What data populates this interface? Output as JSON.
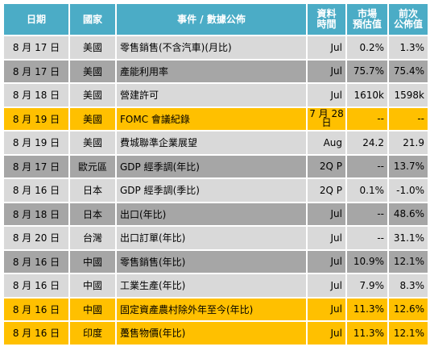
{
  "headers": {
    "date": "日期",
    "country": "國家",
    "event": "事件 / 數據公佈",
    "period_line1": "資料",
    "period_line2": "時間",
    "forecast_line1": "市場",
    "forecast_line2": "預估值",
    "previous_line1": "前次",
    "previous_line2": "公佈值"
  },
  "rows": [
    {
      "date": "8 月 17 日",
      "country": "美國",
      "event": "零售銷售(不含汽車)(月比)",
      "period": "Jul",
      "forecast": "0.2%",
      "previous": "1.3%",
      "style": "light"
    },
    {
      "date": "8 月 17 日",
      "country": "美國",
      "event": "產能利用率",
      "period": "Jul",
      "forecast": "75.7%",
      "previous": "75.4%",
      "style": "dark"
    },
    {
      "date": "8 月 18 日",
      "country": "美國",
      "event": "營建許可",
      "period": "Jul",
      "forecast": "1610k",
      "previous": "1598k",
      "style": "light"
    },
    {
      "date": "8 月 19 日",
      "country": "美國",
      "event": "FOMC 會議紀錄",
      "period": "7 月 28 日",
      "forecast": "--",
      "previous": "--",
      "style": "gold"
    },
    {
      "date": "8 月 19 日",
      "country": "美國",
      "event": "費城聯準企業展望",
      "period": "Aug",
      "forecast": "24.2",
      "previous": "21.9",
      "style": "light"
    },
    {
      "date": "8 月 17 日",
      "country": "歐元區",
      "event": "GDP 經季調(年比)",
      "period": "2Q P",
      "forecast": "--",
      "previous": "13.7%",
      "style": "dark"
    },
    {
      "date": "8 月 16 日",
      "country": "日本",
      "event": "GDP 經季調(季比)",
      "period": "2Q P",
      "forecast": "0.1%",
      "previous": "-1.0%",
      "style": "light"
    },
    {
      "date": "8 月 18 日",
      "country": "日本",
      "event": "出口(年比)",
      "period": "Jul",
      "forecast": "--",
      "previous": "48.6%",
      "style": "dark"
    },
    {
      "date": "8 月 20 日",
      "country": "台灣",
      "event": "出口訂單(年比)",
      "period": "Jul",
      "forecast": "--",
      "previous": "31.1%",
      "style": "light"
    },
    {
      "date": "8 月 16 日",
      "country": "中國",
      "event": "零售銷售(年比)",
      "period": "Jul",
      "forecast": "10.9%",
      "previous": "12.1%",
      "style": "dark"
    },
    {
      "date": "8 月 16 日",
      "country": "中國",
      "event": "工業生產(年比)",
      "period": "Jul",
      "forecast": "7.9%",
      "previous": "8.3%",
      "style": "light"
    },
    {
      "date": "8 月 16 日",
      "country": "中國",
      "event": "固定資產農村除外年至今(年比)",
      "period": "Jul",
      "forecast": "11.3%",
      "previous": "12.6%",
      "style": "gold"
    },
    {
      "date": "8 月 16 日",
      "country": "印度",
      "event": "躉售物價(年比)",
      "period": "Jul",
      "forecast": "11.3%",
      "previous": "12.1%",
      "style": "gold"
    }
  ]
}
